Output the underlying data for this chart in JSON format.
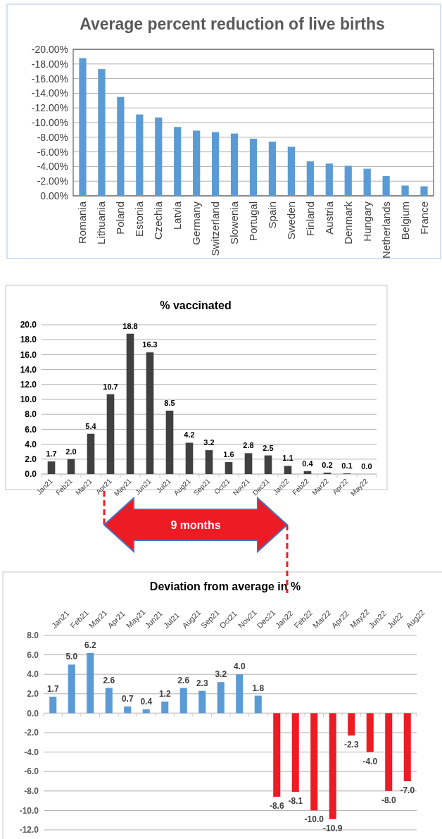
{
  "chart_data": [
    {
      "type": "bar",
      "title": "Average percent reduction of live births",
      "categories": [
        "Romania",
        "Lithuania",
        "Poland",
        "Estonia",
        "Czechia",
        "Latvia",
        "Germany",
        "Switzerland",
        "Slowenia",
        "Portugal",
        "Spain",
        "Sweden",
        "Finland",
        "Austria",
        "Denmark",
        "Hungary",
        "Netherlands",
        "Belgium",
        "France"
      ],
      "series": [
        {
          "color": "#5b9bd5",
          "values": [
            -18.8,
            -17.3,
            -13.5,
            -11.1,
            -10.7,
            -9.4,
            -8.9,
            -8.7,
            -8.5,
            -7.8,
            -7.4,
            -6.7,
            -4.7,
            -4.4,
            -4.1,
            -3.7,
            -2.7,
            -1.4,
            -1.3
          ]
        }
      ],
      "ylim": [
        0,
        -20
      ],
      "yticks": [
        {
          "value": 0,
          "label": "0.00%"
        },
        {
          "value": -2,
          "label": "-2.00%"
        },
        {
          "value": -4,
          "label": "-4.00%"
        },
        {
          "value": -6,
          "label": "-6.00%"
        },
        {
          "value": -8,
          "label": "-8.00%"
        },
        {
          "value": -10,
          "label": "-10.00%"
        },
        {
          "value": -12,
          "label": "-12.00%"
        },
        {
          "value": -14,
          "label": "-14.00%"
        },
        {
          "value": -16,
          "label": "-16.00%"
        },
        {
          "value": -18,
          "label": "-18.00%"
        },
        {
          "value": -20,
          "label": "-20.00%"
        }
      ],
      "grid": "y"
    },
    {
      "type": "bar",
      "title": "% vaccinated",
      "categories": [
        "Jan21",
        "Feb21",
        "Mar21",
        "Apr21",
        "May21",
        "Jun21",
        "Jul21",
        "Aug21",
        "Sep21",
        "Oct21",
        "Nov21",
        "Dec21",
        "Jan22",
        "Feb22",
        "Mar22",
        "Apr22",
        "May22"
      ],
      "series": [
        {
          "color": "#404040",
          "values": [
            1.7,
            2.0,
            5.4,
            10.7,
            18.8,
            16.3,
            8.5,
            4.2,
            3.2,
            1.6,
            2.8,
            2.5,
            1.1,
            0.4,
            0.2,
            0.1,
            0.0
          ],
          "value_labels": [
            "1.7",
            "2.0",
            "5.4",
            "10.7",
            "18.8",
            "16.3",
            "8.5",
            "4.2",
            "3.2",
            "1.6",
            "2.8",
            "2.5",
            "1.1",
            "0.4",
            "0.2",
            "0.1",
            "0.0"
          ]
        }
      ],
      "ylim": [
        0,
        20
      ],
      "yticks": [
        {
          "value": 0,
          "label": "0.0"
        },
        {
          "value": 2,
          "label": "2.0"
        },
        {
          "value": 4,
          "label": "4.0"
        },
        {
          "value": 6,
          "label": "6.0"
        },
        {
          "value": 8,
          "label": "8.0"
        },
        {
          "value": 10,
          "label": "10.0"
        },
        {
          "value": 12,
          "label": "12.0"
        },
        {
          "value": 14,
          "label": "14.0"
        },
        {
          "value": 16,
          "label": "16.0"
        },
        {
          "value": 18,
          "label": "18.0"
        },
        {
          "value": 20,
          "label": "20.0"
        }
      ],
      "grid": "y",
      "annotations": [
        "9 months"
      ]
    },
    {
      "type": "bar",
      "title": "Deviation from average in %",
      "categories": [
        "Jan21",
        "Feb21",
        "Mar21",
        "Apr21",
        "May21",
        "Jun21",
        "Jul21",
        "Aug21",
        "Sep21",
        "Oct21",
        "Nov21",
        "Dec21",
        "Jan22",
        "Feb22",
        "Mar22",
        "Apr22",
        "May22",
        "Jun22",
        "Jul22",
        "Aug22"
      ],
      "series": [
        {
          "values": [
            1.7,
            5.0,
            6.2,
            2.6,
            0.7,
            0.4,
            1.2,
            2.6,
            2.3,
            3.2,
            4.0,
            1.8,
            -8.6,
            -8.1,
            -10.0,
            -10.9,
            -2.3,
            -4.0,
            -8.0,
            -7.0
          ],
          "colors": [
            "#5b9bd5",
            "#5b9bd5",
            "#5b9bd5",
            "#5b9bd5",
            "#5b9bd5",
            "#5b9bd5",
            "#5b9bd5",
            "#5b9bd5",
            "#5b9bd5",
            "#5b9bd5",
            "#5b9bd5",
            "#5b9bd5",
            "#ed1c24",
            "#ed1c24",
            "#ed1c24",
            "#ed1c24",
            "#ed1c24",
            "#ed1c24",
            "#ed1c24",
            "#ed1c24"
          ],
          "value_labels": [
            "1.7",
            "5.0",
            "6.2",
            "2.6",
            "0.7",
            "0.4",
            "1.2",
            "2.6",
            "2.3",
            "3.2",
            "4.0",
            "1.8",
            "-8.6",
            "-8.1",
            "-10.0",
            "-10.9",
            "-2.3",
            "-4.0",
            "-8.0",
            "-7.0"
          ]
        }
      ],
      "ylim": [
        -12,
        8
      ],
      "yticks": [
        {
          "value": -12,
          "label": "-12.0"
        },
        {
          "value": -10,
          "label": "-10.0"
        },
        {
          "value": -8,
          "label": "-8.0"
        },
        {
          "value": -6,
          "label": "-6.0"
        },
        {
          "value": -4,
          "label": "-4.0"
        },
        {
          "value": -2,
          "label": "-2.0"
        },
        {
          "value": 0,
          "label": "0.0"
        },
        {
          "value": 2,
          "label": "2.0"
        },
        {
          "value": 4,
          "label": "4.0"
        },
        {
          "value": 6,
          "label": "6.0"
        },
        {
          "value": 8,
          "label": "8.0"
        }
      ],
      "grid": "y"
    }
  ]
}
